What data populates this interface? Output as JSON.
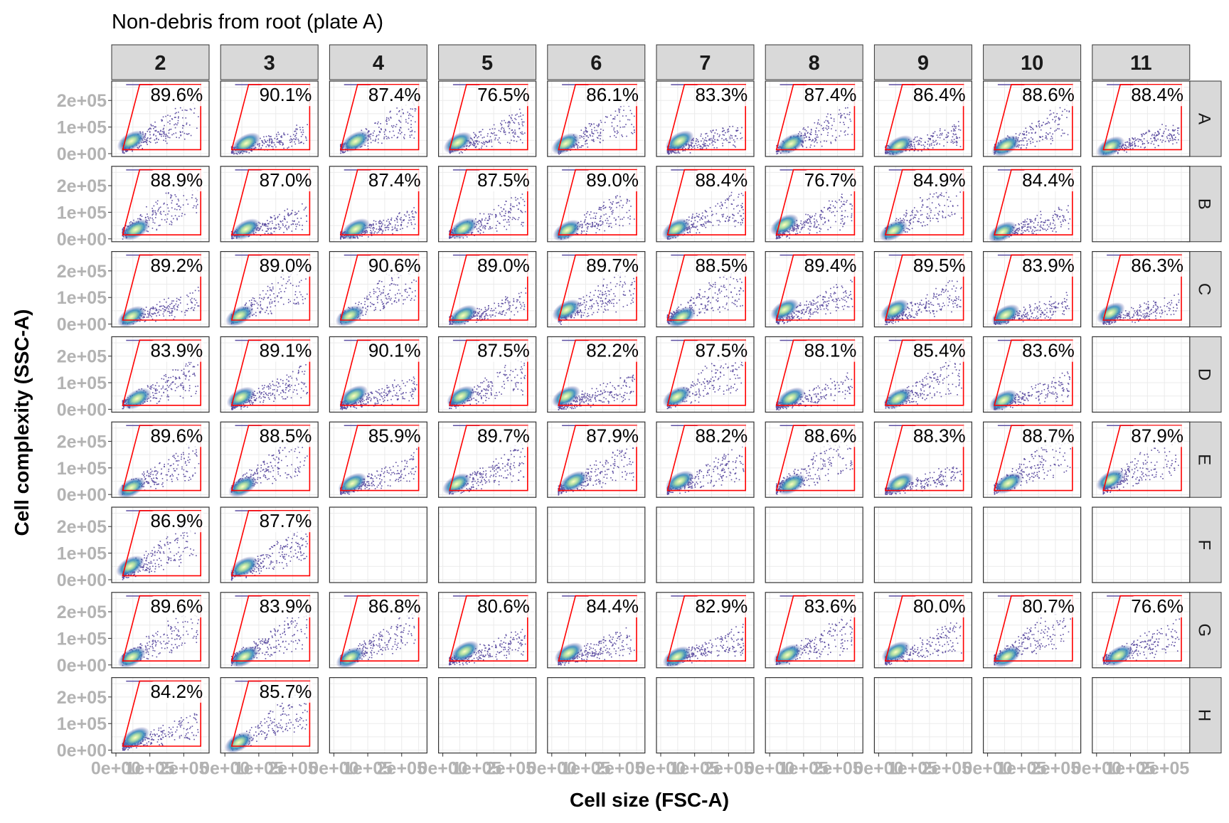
{
  "chart_data": {
    "type": "scatter",
    "title": "Non-debris from root (plate A)",
    "xlabel": "Cell size (FSC-A)",
    "ylabel": "Cell complexity (SSC-A)",
    "columns": [
      "2",
      "3",
      "4",
      "5",
      "6",
      "7",
      "8",
      "9",
      "10",
      "11"
    ],
    "rows": [
      "A",
      "B",
      "C",
      "D",
      "E",
      "F",
      "G",
      "H"
    ],
    "y_ticks": [
      "0e+00",
      "1e+05",
      "2e+05"
    ],
    "x_ticks": [
      "0e+00",
      "1e+05",
      "2e+05"
    ],
    "ylim": [
      0,
      262144
    ],
    "xlim": [
      0,
      262144
    ],
    "grid": true,
    "panels": {
      "A": [
        "89.6%",
        "90.1%",
        "87.4%",
        "76.5%",
        "86.1%",
        "83.3%",
        "87.4%",
        "86.4%",
        "88.6%",
        "88.4%"
      ],
      "B": [
        "88.9%",
        "87.0%",
        "87.4%",
        "87.5%",
        "89.0%",
        "88.4%",
        "76.7%",
        "84.9%",
        "84.4%",
        null
      ],
      "C": [
        "89.2%",
        "89.0%",
        "90.6%",
        "89.0%",
        "89.7%",
        "88.5%",
        "89.4%",
        "89.5%",
        "83.9%",
        "86.3%"
      ],
      "D": [
        "83.9%",
        "89.1%",
        "90.1%",
        "87.5%",
        "82.2%",
        "87.5%",
        "88.1%",
        "85.4%",
        "83.6%",
        null
      ],
      "E": [
        "89.6%",
        "88.5%",
        "85.9%",
        "89.7%",
        "87.9%",
        "88.2%",
        "88.6%",
        "88.3%",
        "88.7%",
        "87.9%"
      ],
      "F": [
        "86.9%",
        "87.7%",
        null,
        null,
        null,
        null,
        null,
        null,
        null,
        null
      ],
      "G": [
        "89.6%",
        "83.9%",
        "86.8%",
        "80.6%",
        "84.4%",
        "82.9%",
        "83.6%",
        "80.0%",
        "80.7%",
        "76.6%"
      ],
      "H": [
        "84.2%",
        "85.7%",
        null,
        null,
        null,
        null,
        null,
        null,
        null,
        null
      ]
    },
    "gate_color": "#ff0000",
    "colors": {
      "strip_bg": "#d9d9d9",
      "panel_border": "#333333",
      "grid": "#ebebeb",
      "tick_text": "#b3b3b3",
      "density_low": "#5e4fa2",
      "density_mid": "#3288bd",
      "density_high": "#ffffbf"
    }
  }
}
